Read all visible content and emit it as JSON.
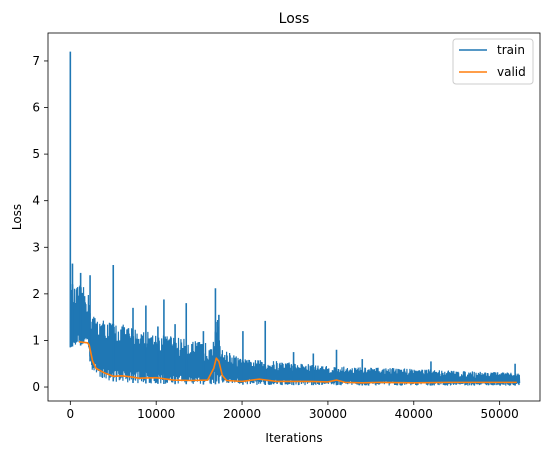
{
  "chart_data": {
    "type": "line",
    "title": "Loss",
    "xlabel": "Iterations",
    "ylabel": "Loss",
    "xlim": [
      -2600,
      54700
    ],
    "ylim": [
      -0.3,
      7.6
    ],
    "xticks": [
      0,
      10000,
      20000,
      30000,
      40000,
      50000
    ],
    "yticks": [
      0,
      1,
      2,
      3,
      4,
      5,
      6,
      7
    ],
    "grid": false,
    "legend_position": "top-right",
    "series": [
      {
        "name": "train",
        "color": "#1f77b4",
        "style": "noisy",
        "x": [
          0,
          150,
          400,
          1000,
          2000,
          2500,
          3000,
          4000,
          5000,
          6000,
          8000,
          10000,
          12000,
          14000,
          16000,
          16800,
          17200,
          17700,
          18500,
          20000,
          25000,
          30000,
          35000,
          40000,
          45000,
          50000,
          52300
        ],
        "y_low": [
          0.85,
          0.85,
          0.9,
          0.9,
          0.85,
          0.35,
          0.25,
          0.15,
          0.12,
          0.1,
          0.08,
          0.07,
          0.06,
          0.06,
          0.05,
          0.05,
          0.08,
          0.06,
          0.05,
          0.05,
          0.04,
          0.04,
          0.03,
          0.03,
          0.03,
          0.03,
          0.03
        ],
        "y_high": [
          1.85,
          2.4,
          2.1,
          2.2,
          2.1,
          1.6,
          1.5,
          1.45,
          1.4,
          1.35,
          1.25,
          1.15,
          1.1,
          1.0,
          0.95,
          1.2,
          1.5,
          0.8,
          0.75,
          0.6,
          0.55,
          0.45,
          0.42,
          0.4,
          0.35,
          0.32,
          0.3
        ],
        "spikes": [
          {
            "x": 0,
            "y": 7.2
          },
          {
            "x": 250,
            "y": 2.65
          },
          {
            "x": 1200,
            "y": 2.45
          },
          {
            "x": 2300,
            "y": 2.4
          },
          {
            "x": 5000,
            "y": 2.62
          },
          {
            "x": 7300,
            "y": 1.7
          },
          {
            "x": 8800,
            "y": 1.75
          },
          {
            "x": 10200,
            "y": 1.3
          },
          {
            "x": 10900,
            "y": 1.88
          },
          {
            "x": 12200,
            "y": 1.35
          },
          {
            "x": 13500,
            "y": 1.8
          },
          {
            "x": 15500,
            "y": 1.2
          },
          {
            "x": 16900,
            "y": 2.12
          },
          {
            "x": 17300,
            "y": 1.55
          },
          {
            "x": 20100,
            "y": 1.2
          },
          {
            "x": 22700,
            "y": 1.42
          },
          {
            "x": 26000,
            "y": 0.75
          },
          {
            "x": 28300,
            "y": 0.72
          },
          {
            "x": 31000,
            "y": 0.8
          },
          {
            "x": 34000,
            "y": 0.6
          },
          {
            "x": 42000,
            "y": 0.55
          },
          {
            "x": 51800,
            "y": 0.5
          }
        ]
      },
      {
        "name": "valid",
        "color": "#ff7f0e",
        "x": [
          1000,
          2000,
          2200,
          2600,
          3000,
          4000,
          5000,
          6000,
          7000,
          8000,
          10000,
          12000,
          14000,
          16000,
          16700,
          17000,
          17300,
          17700,
          18200,
          20000,
          22000,
          24000,
          26000,
          28000,
          30000,
          31000,
          32000,
          34000,
          36000,
          40000,
          44000,
          48000,
          52000
        ],
        "y": [
          0.97,
          0.95,
          0.9,
          0.55,
          0.4,
          0.3,
          0.23,
          0.24,
          0.22,
          0.19,
          0.2,
          0.15,
          0.14,
          0.15,
          0.4,
          0.62,
          0.55,
          0.25,
          0.14,
          0.12,
          0.17,
          0.12,
          0.12,
          0.12,
          0.11,
          0.15,
          0.1,
          0.09,
          0.1,
          0.09,
          0.1,
          0.1,
          0.1
        ]
      }
    ]
  }
}
